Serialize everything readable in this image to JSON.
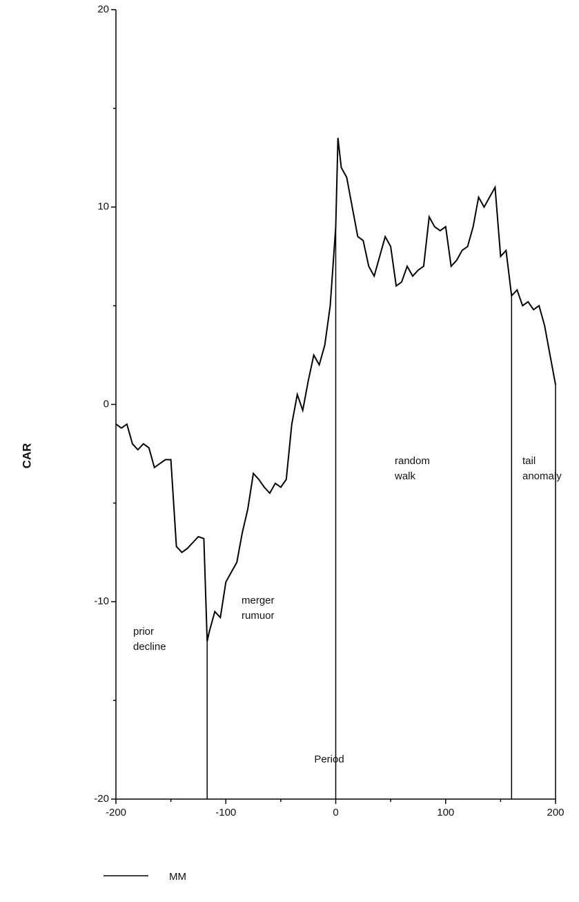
{
  "chart_data": {
    "type": "line",
    "xlabel": "Period",
    "ylabel": "CAR",
    "x": [
      -200,
      -195,
      -190,
      -185,
      -180,
      -175,
      -170,
      -165,
      -160,
      -155,
      -150,
      -145,
      -140,
      -135,
      -130,
      -125,
      -120,
      -117,
      -115,
      -110,
      -105,
      -100,
      -95,
      -90,
      -85,
      -80,
      -75,
      -70,
      -65,
      -60,
      -55,
      -50,
      -45,
      -40,
      -35,
      -30,
      -25,
      -20,
      -15,
      -10,
      -5,
      0,
      2,
      5,
      10,
      15,
      20,
      25,
      30,
      35,
      40,
      45,
      50,
      55,
      60,
      65,
      70,
      75,
      80,
      85,
      90,
      95,
      100,
      105,
      110,
      115,
      120,
      125,
      130,
      135,
      140,
      145,
      150,
      155,
      160,
      165,
      170,
      175,
      180,
      185,
      190,
      195,
      200
    ],
    "series": [
      {
        "name": "MM",
        "color": "#000000",
        "values": [
          -1,
          -1.2,
          -1,
          -2,
          -2.3,
          -2,
          -2.2,
          -3.2,
          -3,
          -2.8,
          -2.8,
          -7.2,
          -7.5,
          -7.3,
          -7,
          -6.7,
          -6.8,
          -12,
          -11.5,
          -10.5,
          -10.8,
          -9,
          -8.5,
          -8,
          -6.5,
          -5.3,
          -3.5,
          -3.8,
          -4.2,
          -4.5,
          -4,
          -4.2,
          -3.8,
          -1,
          0.5,
          -0.3,
          1.2,
          2.5,
          2,
          3,
          5,
          9,
          13.5,
          12,
          11.5,
          10,
          8.5,
          8.3,
          7,
          6.5,
          7.5,
          8.5,
          8,
          6,
          6.2,
          7,
          6.5,
          6.8,
          7,
          9.5,
          9,
          8.8,
          9,
          7,
          7.3,
          7.8,
          8,
          9,
          10.5,
          10,
          10.5,
          11,
          7.5,
          7.8,
          5.5,
          5.8,
          5,
          5.2,
          4.8,
          5,
          4,
          2.5,
          1
        ]
      }
    ],
    "event_lines": [
      -117,
      0,
      160,
      200
    ],
    "annotations": [
      [
        "prior",
        "decline"
      ],
      [
        "merger",
        "rumuor"
      ],
      [
        "random",
        "walk"
      ],
      [
        "tail",
        "anomaly"
      ]
    ],
    "xlim": [
      -200,
      200
    ],
    "xticks": [
      -200,
      -100,
      0,
      100,
      200
    ],
    "xminorticks": [
      -150,
      -50,
      50,
      150
    ],
    "ylim": [
      -20,
      20
    ],
    "yticks": [
      -20,
      -10,
      0,
      10,
      20
    ],
    "yminorticks": [
      -15,
      -5,
      5,
      15
    ]
  }
}
